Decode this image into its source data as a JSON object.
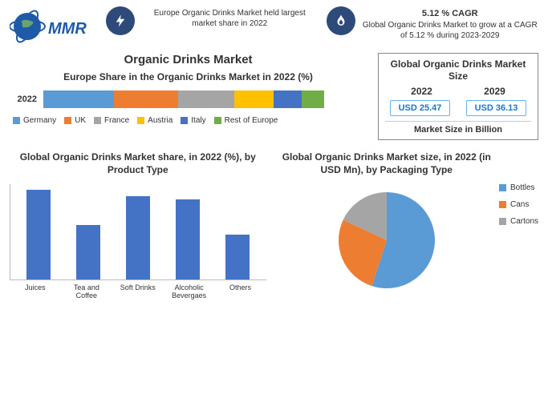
{
  "logo_text": "MMR",
  "callouts": [
    {
      "headline": "",
      "text": "Europe Organic Drinks Market held largest market share in 2022"
    },
    {
      "headline": "5.12 % CAGR",
      "text": "Global Organic Drinks Market to grow at a CAGR of 5.12 % during 2023-2029"
    }
  ],
  "europe_chart": {
    "title": "Organic Drinks Market",
    "subtitle": "Europe Share in the Organic Drinks Market in 2022 (%)",
    "y_label": "2022",
    "segments": [
      {
        "label": "Germany",
        "value": 25,
        "color": "#5b9bd5"
      },
      {
        "label": "UK",
        "value": 23,
        "color": "#ed7d31"
      },
      {
        "label": "France",
        "value": 20,
        "color": "#a5a5a5"
      },
      {
        "label": "Austria",
        "value": 14,
        "color": "#ffc000"
      },
      {
        "label": "Italy",
        "value": 10,
        "color": "#4472c4"
      },
      {
        "label": "Rest of Europe",
        "value": 8,
        "color": "#70ad47"
      }
    ]
  },
  "size_card": {
    "title": "Global Organic Drinks Market Size",
    "year_a": "2022",
    "year_b": "2029",
    "val_a": "USD 25.47",
    "val_b": "USD 36.13",
    "unit": "Market Size in Billion"
  },
  "bar_chart": {
    "title": "Global Organic Drinks Market  share, in 2022 (%), by Product Type",
    "color": "#4472c4",
    "ymax": 30,
    "bars": [
      {
        "label": "Juices",
        "value": 28
      },
      {
        "label": "Tea and Coffee",
        "value": 17
      },
      {
        "label": "Soft Drinks",
        "value": 26
      },
      {
        "label": "Alcoholic Bevergaes",
        "value": 25
      },
      {
        "label": "Others",
        "value": 14
      }
    ]
  },
  "pie_chart": {
    "title": "Global Organic Drinks Market size, in 2022 (in USD Mn), by Packaging Type",
    "slices": [
      {
        "label": "Bottles",
        "value": 55,
        "color": "#5b9bd5"
      },
      {
        "label": "Cans",
        "value": 27,
        "color": "#ed7d31"
      },
      {
        "label": "Cartons",
        "value": 18,
        "color": "#a5a5a5"
      }
    ]
  }
}
